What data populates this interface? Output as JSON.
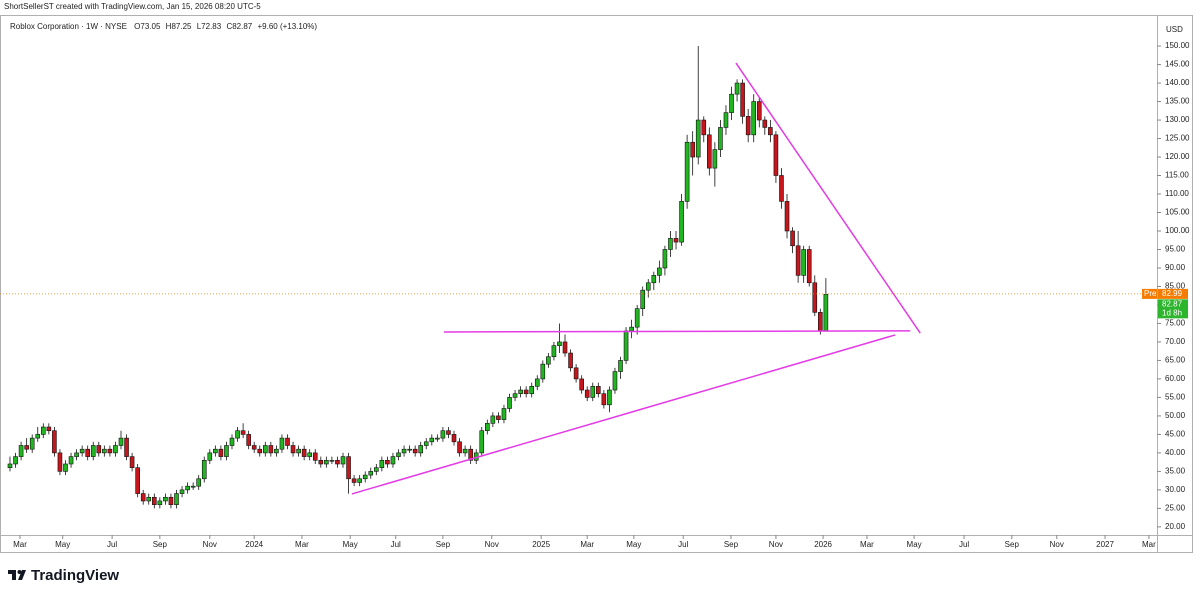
{
  "chart_data": {
    "type": "candlestick",
    "header": "ShortSellerST created with TradingView.com, Jan 15, 2026 08:20 UTC-5",
    "title": "Roblox Corporation · 1W · NYSE",
    "ohlc_prefixes": [
      "O",
      "H",
      "L",
      "C"
    ],
    "change": "+9.60 (+13.10%)",
    "currency": "USD",
    "brand": "TradingView",
    "premarket": {
      "label": "Pre",
      "value": 82.99,
      "color": "#f57c00"
    },
    "last_price": {
      "value": 82.87,
      "countdown": "1d 8h",
      "color": "#2db52d"
    },
    "up_color": "#22b522",
    "down_color": "#c4161c",
    "grid": false,
    "open": [
      36,
      37,
      39,
      42,
      41,
      44,
      45,
      47,
      46,
      40,
      35,
      37,
      39,
      40,
      41,
      39,
      42,
      40,
      41,
      40,
      42,
      44,
      39,
      36,
      29,
      27,
      28,
      26,
      27,
      28,
      26,
      29,
      30,
      31,
      31,
      33,
      38,
      40,
      41,
      39,
      42,
      44,
      46,
      45,
      42,
      41,
      40,
      42,
      40,
      41,
      44,
      42,
      40,
      41,
      39,
      40,
      38,
      37,
      38,
      38,
      37,
      39,
      33,
      32,
      33,
      34,
      35,
      36,
      38,
      37,
      39,
      40,
      41,
      41,
      40,
      42,
      43,
      44,
      44,
      46,
      45,
      43,
      40,
      41,
      38,
      40,
      46,
      48,
      50,
      49,
      52,
      55,
      56,
      57,
      56,
      58,
      60,
      64,
      66,
      69,
      70,
      67,
      63,
      60,
      57,
      55,
      58,
      56,
      53,
      57,
      62,
      65,
      73,
      74,
      79,
      84,
      86,
      88,
      90,
      95,
      98,
      97,
      108,
      124,
      120,
      130,
      126,
      117,
      122,
      128,
      132,
      137,
      140,
      131,
      126,
      135,
      130,
      128,
      126,
      115,
      108,
      100,
      96,
      88,
      95,
      86,
      78,
      73.05
    ],
    "high": [
      39,
      40,
      43,
      44,
      45,
      47,
      48,
      48,
      47,
      41,
      38,
      40,
      41,
      42,
      42,
      43,
      43,
      42,
      42,
      43,
      46,
      45,
      40,
      37,
      30,
      29,
      29,
      28,
      29,
      29,
      30,
      31,
      32,
      32,
      34,
      39,
      41,
      42,
      42,
      43,
      45,
      47,
      48,
      46,
      43,
      42,
      43,
      43,
      42,
      45,
      45,
      43,
      42,
      42,
      41,
      41,
      39,
      39,
      39,
      39,
      40,
      40,
      34,
      34,
      35,
      36,
      37,
      39,
      39,
      40,
      41,
      42,
      42,
      42,
      43,
      44,
      45,
      45,
      47,
      47,
      46,
      44,
      42,
      42,
      41,
      47,
      49,
      51,
      51,
      53,
      56,
      57,
      58,
      58,
      59,
      61,
      65,
      67,
      70,
      75,
      72,
      68,
      64,
      61,
      58,
      59,
      59,
      57,
      58,
      63,
      66,
      74,
      76,
      80,
      85,
      87,
      89,
      92,
      96,
      100,
      100,
      110,
      126,
      127,
      150,
      131,
      128,
      124,
      130,
      134,
      139,
      141,
      141,
      133,
      137,
      136,
      131,
      130,
      127,
      117,
      110,
      101,
      100,
      96,
      96,
      88,
      79,
      87.25
    ],
    "low": [
      35,
      36,
      38,
      40,
      40,
      43,
      44,
      45,
      39,
      34,
      34,
      36,
      38,
      39,
      38,
      38,
      39,
      39,
      39,
      39,
      41,
      38,
      35,
      28,
      26,
      26,
      25,
      25,
      26,
      25,
      25,
      28,
      29,
      30,
      30,
      32,
      37,
      39,
      38,
      38,
      41,
      43,
      44,
      41,
      40,
      39,
      39,
      39,
      39,
      40,
      41,
      39,
      39,
      38,
      38,
      37,
      36,
      36,
      37,
      36,
      36,
      29,
      31,
      31,
      32,
      33,
      34,
      35,
      36,
      36,
      38,
      39,
      40,
      39,
      39,
      41,
      42,
      43,
      43,
      44,
      42,
      39,
      39,
      37,
      37,
      39,
      45,
      47,
      48,
      48,
      51,
      54,
      55,
      55,
      55,
      57,
      59,
      63,
      65,
      67,
      66,
      62,
      59,
      56,
      54,
      54,
      55,
      52,
      51,
      56,
      60,
      64,
      71,
      72,
      77,
      82,
      84,
      86,
      88,
      93,
      95,
      96,
      106,
      115,
      118,
      124,
      115,
      112,
      120,
      126,
      130,
      135,
      129,
      124,
      124,
      128,
      126,
      124,
      113,
      106,
      98,
      94,
      86,
      86,
      85,
      77,
      72,
      72.83
    ],
    "close": [
      37,
      39,
      42,
      41,
      44,
      45,
      47,
      46,
      40,
      35,
      37,
      39,
      40,
      41,
      39,
      42,
      40,
      41,
      40,
      42,
      44,
      39,
      36,
      29,
      27,
      28,
      26,
      27,
      28,
      26,
      29,
      30,
      31,
      31,
      33,
      38,
      40,
      41,
      39,
      42,
      44,
      46,
      45,
      42,
      41,
      40,
      42,
      40,
      41,
      44,
      42,
      40,
      41,
      39,
      40,
      38,
      37,
      38,
      38,
      37,
      39,
      33,
      32,
      33,
      34,
      35,
      36,
      38,
      37,
      39,
      40,
      41,
      41,
      40,
      42,
      43,
      44,
      44,
      46,
      45,
      43,
      40,
      41,
      38,
      40,
      46,
      48,
      50,
      49,
      52,
      55,
      56,
      57,
      56,
      58,
      60,
      64,
      66,
      69,
      70,
      67,
      63,
      60,
      57,
      55,
      58,
      56,
      53,
      57,
      62,
      65,
      73,
      74,
      79,
      84,
      86,
      88,
      90,
      95,
      98,
      97,
      108,
      124,
      120,
      130,
      126,
      117,
      122,
      128,
      132,
      137,
      140,
      131,
      126,
      135,
      130,
      128,
      126,
      115,
      108,
      100,
      96,
      88,
      95,
      86,
      78,
      73,
      82.87
    ],
    "xlim": [
      -1.8,
      206.3
    ],
    "xticks": [
      {
        "value": 1.8,
        "label": "Mar"
      },
      {
        "value": 9.5,
        "label": "May"
      },
      {
        "value": 18.4,
        "label": "Jul"
      },
      {
        "value": 27.0,
        "label": "Sep"
      },
      {
        "value": 36.0,
        "label": "Nov"
      },
      {
        "value": 44.0,
        "label": "2024"
      },
      {
        "value": 52.6,
        "label": "Mar"
      },
      {
        "value": 61.3,
        "label": "May"
      },
      {
        "value": 69.5,
        "label": "Jul"
      },
      {
        "value": 78.0,
        "label": "Sep"
      },
      {
        "value": 86.8,
        "label": "Nov"
      },
      {
        "value": 95.7,
        "label": "2025"
      },
      {
        "value": 104.0,
        "label": "Mar"
      },
      {
        "value": 112.4,
        "label": "May"
      },
      {
        "value": 121.3,
        "label": "Jul"
      },
      {
        "value": 129.9,
        "label": "Sep"
      },
      {
        "value": 138.0,
        "label": "Nov"
      },
      {
        "value": 146.5,
        "label": "2026"
      },
      {
        "value": 154.4,
        "label": "Mar"
      },
      {
        "value": 162.9,
        "label": "May"
      },
      {
        "value": 171.9,
        "label": "Jul"
      },
      {
        "value": 180.5,
        "label": "Sep"
      },
      {
        "value": 188.6,
        "label": "Nov"
      },
      {
        "value": 197.3,
        "label": "2027"
      },
      {
        "value": 205.2,
        "label": "Mar"
      }
    ],
    "ylim": [
      17.8,
      158.4
    ],
    "yticks": [
      {
        "value": 20,
        "label": "20.00"
      },
      {
        "value": 25,
        "label": "25.00"
      },
      {
        "value": 30,
        "label": "30.00"
      },
      {
        "value": 35,
        "label": "35.00"
      },
      {
        "value": 40,
        "label": "40.00"
      },
      {
        "value": 45,
        "label": "45.00"
      },
      {
        "value": 50,
        "label": "50.00"
      },
      {
        "value": 55,
        "label": "55.00"
      },
      {
        "value": 60,
        "label": "60.00"
      },
      {
        "value": 65,
        "label": "65.00"
      },
      {
        "value": 70,
        "label": "70.00"
      },
      {
        "value": 75,
        "label": "75.00"
      },
      {
        "value": 80,
        "label": "80.00"
      },
      {
        "value": 85,
        "label": "85.00"
      },
      {
        "value": 90,
        "label": "90.00"
      },
      {
        "value": 95,
        "label": "95.00"
      },
      {
        "value": 100,
        "label": "100.00"
      },
      {
        "value": 105,
        "label": "105.00"
      },
      {
        "value": 110,
        "label": "110.00"
      },
      {
        "value": 115,
        "label": "115.00"
      },
      {
        "value": 120,
        "label": "120.00"
      },
      {
        "value": 125,
        "label": "125.00"
      },
      {
        "value": 130,
        "label": "130.00"
      },
      {
        "value": 135,
        "label": "135.00"
      },
      {
        "value": 140,
        "label": "140.00"
      },
      {
        "value": 145,
        "label": "145.00"
      },
      {
        "value": 150,
        "label": "150.00"
      }
    ],
    "trendlines": [
      {
        "color": "#e33be6",
        "x": [
          78.2,
          162.2
        ],
        "y": [
          72.7,
          73.0
        ]
      },
      {
        "color": "#e33be6",
        "x": [
          61.6,
          159.5
        ],
        "y": [
          28.9,
          71.9
        ]
      },
      {
        "color": "#e33be6",
        "x": [
          130.8,
          164.0
        ],
        "y": [
          145.4,
          72.4
        ]
      }
    ]
  }
}
